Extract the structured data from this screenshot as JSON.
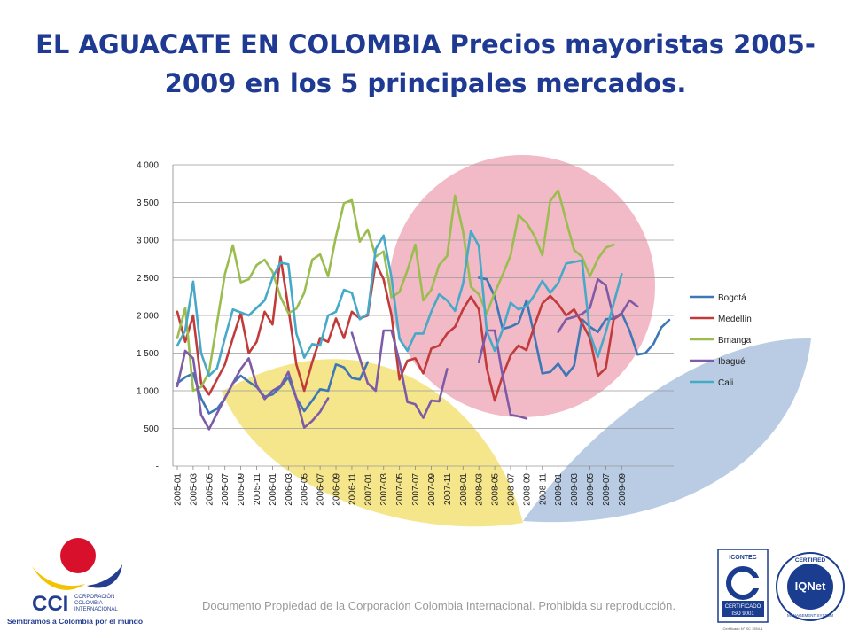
{
  "title": "EL AGUACATE EN COLOMBIA Precios mayoristas 2005-2009 en los 5 principales mercados.",
  "footer": "Documento Propiedad de la Corporación Colombia Internacional. Prohibida su reproducción.",
  "logo": {
    "name": "CCI",
    "org_line1": "CORPORACIÓN",
    "org_line2": "COLOMBIA",
    "org_line3": "INTERNACIONAL",
    "tagline": "Sembramos a Colombia por el mundo"
  },
  "certification": {
    "left_top": "ICONTEC",
    "left_label1": "CERTIFICADO",
    "left_label2": "ISO 9001",
    "left_code": "Certificado N° SC 1554-1",
    "right_ring": "CERTIFIED",
    "right_brand": "IQNet",
    "right_bottom": "MANAGEMENT SYSTEM"
  },
  "colors": {
    "title": "#1f3a93",
    "yellow_leaf": "#f5e68c",
    "pink_circle": "#f2b9c7",
    "blue_leaf": "#b9cce4"
  },
  "chart_data": {
    "type": "line",
    "x_tick_labels": [
      "2005-01",
      "2005-03",
      "2005-05",
      "2005-07",
      "2005-09",
      "2005-11",
      "2006-01",
      "2006-03",
      "2006-05",
      "2006-07",
      "2006-09",
      "2006-11",
      "2007-01",
      "2007-03",
      "2007-05",
      "2007-07",
      "2007-09",
      "2007-11",
      "2008-01",
      "2008-03",
      "2008-05",
      "2008-07",
      "2008-09",
      "2008-11",
      "2009-01",
      "2009-03",
      "2009-05",
      "2009-07",
      "2009-09"
    ],
    "ylim": [
      0,
      4000
    ],
    "y_ticks": [
      0,
      500,
      1000,
      1500,
      2000,
      2500,
      3000,
      3500,
      4000
    ],
    "y_tick_labels": [
      "-",
      "500",
      "1 000",
      "1 500",
      "2 000",
      "2 500",
      "3 000",
      "3 500",
      "4 000"
    ],
    "grid": "horizontal",
    "legend_position": "right",
    "series": [
      {
        "name": "Bogotá",
        "color": "#3d77b5",
        "values": [
          1100,
          1180,
          1230,
          900,
          700,
          760,
          900,
          1100,
          1200,
          1120,
          1050,
          920,
          950,
          1050,
          1180,
          900,
          730,
          870,
          1020,
          1000,
          1350,
          1310,
          1170,
          1150,
          1380,
          null,
          null,
          null,
          null,
          null,
          null,
          null,
          null,
          null,
          null,
          null,
          null,
          null,
          2500,
          2480,
          2250,
          1820,
          1850,
          1900,
          2200,
          1730,
          1230,
          1250,
          1360,
          1200,
          1330,
          1950,
          1850,
          1780,
          1950,
          1960,
          2030,
          1800,
          1480,
          1500,
          1620,
          1840,
          1940
        ]
      },
      {
        "name": "Medellín",
        "color": "#c23b3b",
        "values": [
          2050,
          1650,
          2000,
          1100,
          950,
          1150,
          1350,
          1700,
          2030,
          1500,
          1650,
          2050,
          1880,
          2780,
          2100,
          1350,
          1000,
          1380,
          1700,
          1650,
          1960,
          1700,
          2050,
          1960,
          2000,
          2700,
          2480,
          2000,
          1150,
          1400,
          1430,
          1230,
          1560,
          1600,
          1760,
          1850,
          2080,
          2250,
          2080,
          1300,
          870,
          1200,
          1470,
          1600,
          1540,
          1860,
          2160,
          2260,
          2150,
          2000,
          2080,
          1900,
          1700,
          1200,
          1300,
          1950,
          2020
        ]
      },
      {
        "name": "Bmanga",
        "color": "#9bbd4f",
        "values": [
          1700,
          2100,
          1000,
          1050,
          1250,
          1900,
          2550,
          2930,
          2440,
          2480,
          2670,
          2740,
          2580,
          2250,
          2030,
          2090,
          2300,
          2740,
          2810,
          2520,
          3050,
          3490,
          3530,
          2980,
          3140,
          2780,
          2850,
          2240,
          2310,
          2600,
          2940,
          2200,
          2340,
          2670,
          2790,
          3590,
          3120,
          2380,
          2280,
          2030,
          2300,
          2540,
          2800,
          3330,
          3230,
          3060,
          2800,
          3520,
          3660,
          3260,
          2870,
          2780,
          2520,
          2750,
          2900,
          2940
        ]
      },
      {
        "name": "Ibagué",
        "color": "#7d5ba6",
        "values": [
          1060,
          1530,
          1430,
          680,
          490,
          700,
          900,
          1100,
          1290,
          1430,
          1070,
          890,
          1000,
          1060,
          1250,
          900,
          510,
          600,
          720,
          900,
          null,
          null,
          1770,
          1430,
          1100,
          1000,
          1800,
          1800,
          1390,
          850,
          820,
          640,
          870,
          860,
          1290,
          null,
          null,
          null,
          1380,
          1800,
          1800,
          1200,
          680,
          660,
          630,
          null,
          null,
          null,
          1780,
          1950,
          1980,
          2020,
          2100,
          2480,
          2400,
          1960,
          2030,
          2200,
          2120
        ]
      },
      {
        "name": "Cali",
        "color": "#46a9c8",
        "values": [
          1600,
          1800,
          2450,
          1500,
          1200,
          1300,
          1700,
          2080,
          2040,
          2000,
          2100,
          2200,
          2500,
          2700,
          2680,
          1760,
          1440,
          1620,
          1600,
          2000,
          2050,
          2340,
          2300,
          1950,
          2020,
          2880,
          3060,
          2500,
          1690,
          1530,
          1760,
          1760,
          2050,
          2280,
          2200,
          2060,
          2420,
          3120,
          2920,
          1790,
          1530,
          1810,
          2170,
          2080,
          2120,
          2270,
          2460,
          2300,
          2430,
          2690,
          2710,
          2730,
          1760,
          1450,
          1780,
          2160,
          2550
        ]
      }
    ]
  }
}
